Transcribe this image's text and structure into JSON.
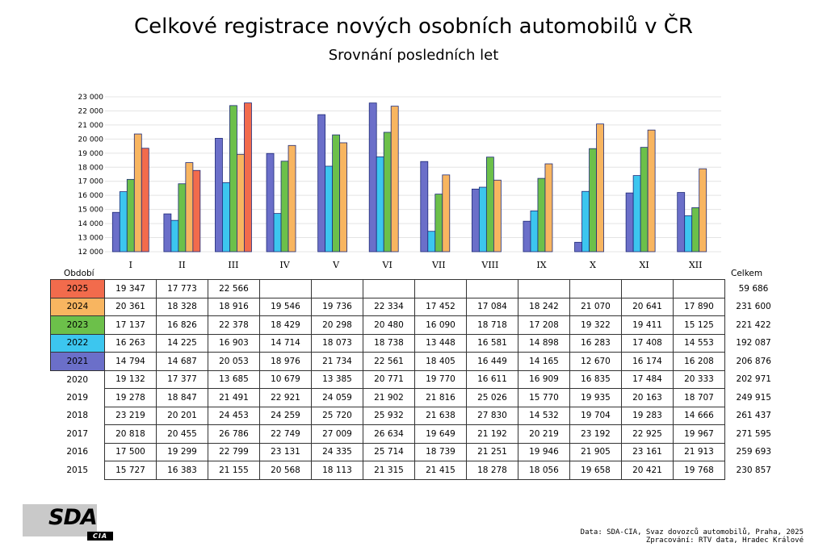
{
  "chart_data": {
    "type": "bar",
    "title": "Celkové registrace nových osobních automobilů v ČR",
    "subtitle": "Srovnání posledních let",
    "categories": [
      "I",
      "II",
      "III",
      "IV",
      "V",
      "VI",
      "VII",
      "VIII",
      "IX",
      "X",
      "XI",
      "XII"
    ],
    "ylim": [
      12000,
      23000
    ],
    "yticks": [
      "12 000",
      "13 000",
      "14 000",
      "15 000",
      "16 000",
      "17 000",
      "18 000",
      "19 000",
      "20 000",
      "21 000",
      "22 000",
      "23 000"
    ],
    "ytick_values": [
      12000,
      13000,
      14000,
      15000,
      16000,
      17000,
      18000,
      19000,
      20000,
      21000,
      22000,
      23000
    ],
    "grid": true,
    "series": [
      {
        "name": "2021",
        "color": "#6b6fc9",
        "values": [
          14794,
          14687,
          20053,
          18976,
          21734,
          22561,
          18405,
          16449,
          14165,
          12670,
          16174,
          16208
        ]
      },
      {
        "name": "2022",
        "color": "#3cc6ef",
        "values": [
          16263,
          14225,
          16903,
          14714,
          18073,
          18738,
          13448,
          16581,
          14898,
          16283,
          17408,
          14553
        ]
      },
      {
        "name": "2023",
        "color": "#6cc04a",
        "values": [
          17137,
          16826,
          22378,
          18429,
          20298,
          20480,
          16090,
          18718,
          17208,
          19322,
          19411,
          15125
        ]
      },
      {
        "name": "2024",
        "color": "#f8b560",
        "values": [
          20361,
          18328,
          18916,
          19546,
          19736,
          22334,
          17452,
          17084,
          18242,
          21070,
          20641,
          17890
        ]
      },
      {
        "name": "2025",
        "color": "#f26b4c",
        "values": [
          19347,
          17773,
          22566,
          null,
          null,
          null,
          null,
          null,
          null,
          null,
          null,
          null
        ]
      }
    ]
  },
  "table": {
    "period_header": "Období",
    "total_header": "Celkem",
    "rows": [
      {
        "year": "2025",
        "color": "#f26b4c",
        "values": [
          "19 347",
          "17 773",
          "22 566",
          "",
          "",
          "",
          "",
          "",
          "",
          "",
          "",
          ""
        ],
        "total": "59 686"
      },
      {
        "year": "2024",
        "color": "#f8b560",
        "values": [
          "20 361",
          "18 328",
          "18 916",
          "19 546",
          "19 736",
          "22 334",
          "17 452",
          "17 084",
          "18 242",
          "21 070",
          "20 641",
          "17 890"
        ],
        "total": "231 600"
      },
      {
        "year": "2023",
        "color": "#6cc04a",
        "values": [
          "17 137",
          "16 826",
          "22 378",
          "18 429",
          "20 298",
          "20 480",
          "16 090",
          "18 718",
          "17 208",
          "19 322",
          "19 411",
          "15 125"
        ],
        "total": "221 422"
      },
      {
        "year": "2022",
        "color": "#3cc6ef",
        "values": [
          "16 263",
          "14 225",
          "16 903",
          "14 714",
          "18 073",
          "18 738",
          "13 448",
          "16 581",
          "14 898",
          "16 283",
          "17 408",
          "14 553"
        ],
        "total": "192 087"
      },
      {
        "year": "2021",
        "color": "#6b6fc9",
        "values": [
          "14 794",
          "14 687",
          "20 053",
          "18 976",
          "21 734",
          "22 561",
          "18 405",
          "16 449",
          "14 165",
          "12 670",
          "16 174",
          "16 208"
        ],
        "total": "206 876"
      },
      {
        "year": "2020",
        "color": "",
        "values": [
          "19 132",
          "17 377",
          "13 685",
          "10 679",
          "13 385",
          "20 771",
          "19 770",
          "16 611",
          "16 909",
          "16 835",
          "17 484",
          "20 333"
        ],
        "total": "202 971"
      },
      {
        "year": "2019",
        "color": "",
        "values": [
          "19 278",
          "18 847",
          "21 491",
          "22 921",
          "24 059",
          "21 902",
          "21 816",
          "25 026",
          "15 770",
          "19 935",
          "20 163",
          "18 707"
        ],
        "total": "249 915"
      },
      {
        "year": "2018",
        "color": "",
        "values": [
          "23 219",
          "20 201",
          "24 453",
          "24 259",
          "25 720",
          "25 932",
          "21 638",
          "27 830",
          "14 532",
          "19 704",
          "19 283",
          "14 666"
        ],
        "total": "261 437"
      },
      {
        "year": "2017",
        "color": "",
        "values": [
          "20 818",
          "20 455",
          "26 786",
          "22 749",
          "27 009",
          "26 634",
          "19 649",
          "21 192",
          "20 219",
          "23 192",
          "22 925",
          "19 967"
        ],
        "total": "271 595"
      },
      {
        "year": "2016",
        "color": "",
        "values": [
          "17 500",
          "19 299",
          "22 799",
          "23 131",
          "24 335",
          "25 714",
          "18 739",
          "21 251",
          "19 946",
          "21 905",
          "23 161",
          "21 913"
        ],
        "total": "259 693"
      },
      {
        "year": "2015",
        "color": "",
        "values": [
          "15 727",
          "16 383",
          "21 155",
          "20 568",
          "18 113",
          "21 315",
          "21 415",
          "18 278",
          "18 056",
          "19 658",
          "20 421",
          "19 768"
        ],
        "total": "230 857"
      }
    ]
  },
  "logo": {
    "text": "SDA",
    "subtext": "CIA"
  },
  "source": {
    "line1": "Data: SDA-CIA, Svaz dovozců automobilů, Praha, 2025",
    "line2": "Zpracování: RTV data, Hradec Králové"
  }
}
